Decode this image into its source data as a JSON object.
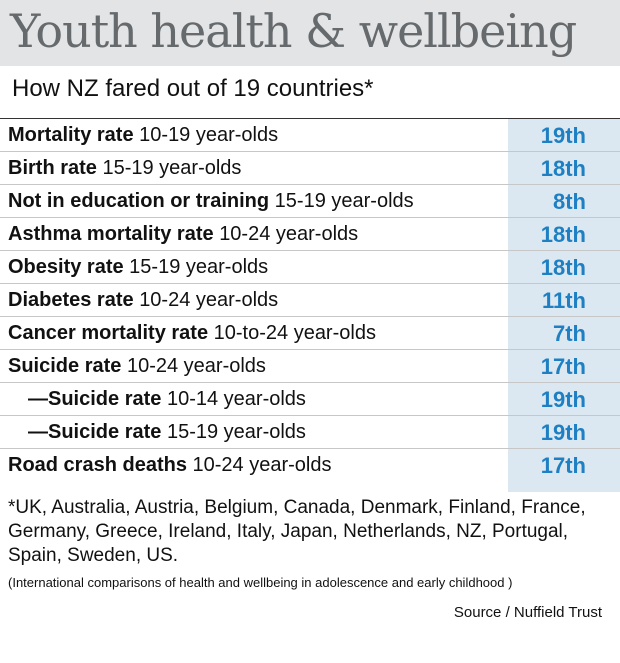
{
  "chart_data": {
    "type": "table",
    "title": "Youth health & wellbeing",
    "subtitle": "How NZ fared out of 19 countries*",
    "rows": [
      {
        "indicator": "Mortality rate",
        "qualifier": "10-19 year-olds",
        "rank": "19th",
        "prefix": ""
      },
      {
        "indicator": "Birth rate",
        "qualifier": "15-19 year-olds",
        "rank": "18th",
        "prefix": ""
      },
      {
        "indicator": "Not in education or training",
        "qualifier": "15-19 year-olds",
        "rank": "8th",
        "prefix": ""
      },
      {
        "indicator": "Asthma mortality rate",
        "qualifier": "10-24 year-olds",
        "rank": "18th",
        "prefix": ""
      },
      {
        "indicator": "Obesity rate",
        "qualifier": "15-19 year-olds",
        "rank": "18th",
        "prefix": ""
      },
      {
        "indicator": "Diabetes rate",
        "qualifier": "10-24 year-olds",
        "rank": "11th",
        "prefix": ""
      },
      {
        "indicator": "Cancer mortality rate",
        "qualifier": "10-to-24 year-olds",
        "rank": "7th",
        "prefix": ""
      },
      {
        "indicator": "Suicide rate",
        "qualifier": "10-24 year-olds",
        "rank": "17th",
        "prefix": ""
      },
      {
        "indicator": "Suicide rate",
        "qualifier": "10-14 year-olds",
        "rank": "19th",
        "prefix": "—"
      },
      {
        "indicator": "Suicide rate",
        "qualifier": "15-19 year-olds",
        "rank": "19th",
        "prefix": "—"
      },
      {
        "indicator": "Road crash deaths",
        "qualifier": "10-24 year-olds",
        "rank": "17th",
        "prefix": ""
      }
    ],
    "footnote": "*UK, Australia, Austria, Belgium, Canada, Denmark, Finland, France, Germany, Greece, Ireland, Italy, Japan, Netherlands, NZ, Portugal, Spain, Sweden, US.",
    "note": "(International comparisons of health and wellbeing in adolescence and early childhood )",
    "source": "Source / Nuffield Trust"
  },
  "colors": {
    "title_band": "#e3e4e5",
    "title_text": "#666a6d",
    "rank_band": "#dbe8f2",
    "rank_text": "#1e7fc2"
  }
}
